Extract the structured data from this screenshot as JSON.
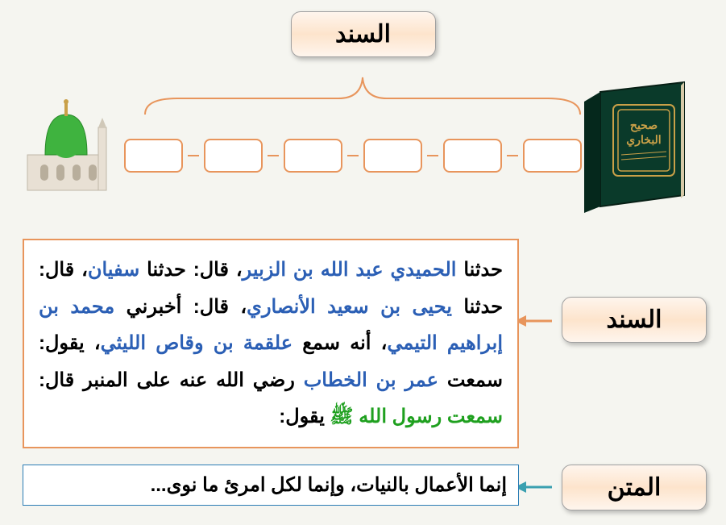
{
  "labels": {
    "sanad_title": "السند",
    "sanad_side": "السند",
    "matn_side": "المتن"
  },
  "colors": {
    "orange_border": "#e8955c",
    "blue_border": "#2b7db5",
    "box_bg_grad_top": "#fef5ed",
    "box_bg_grad_mid": "#fde4cc",
    "narrator_color": "#2b5fb5",
    "prophet_color": "#1fa01f",
    "text_black": "#000000",
    "bg": "#f5f5f0",
    "arrow_orange": "#e8955c",
    "arrow_teal": "#3aa0b0",
    "brace_color": "#e8955c",
    "book_cover": "#0a3a2a",
    "book_gold": "#c9a048",
    "dome_green": "#3fb33f",
    "building_color": "#e8e0d4"
  },
  "chain": {
    "box_count": 6
  },
  "sanad_text": {
    "segments": [
      {
        "t": "حدثنا ",
        "c": "black"
      },
      {
        "t": "الحميدي عبد الله بن الزبير",
        "c": "narrator"
      },
      {
        "t": "، قال: حدثنا ",
        "c": "black"
      },
      {
        "t": "سفيان",
        "c": "narrator"
      },
      {
        "t": "، قال: حدثنا ",
        "c": "black"
      },
      {
        "t": "يحيى بن سعيد الأنصاري",
        "c": "narrator"
      },
      {
        "t": "، قال: أخبرني ",
        "c": "black"
      },
      {
        "t": "محمد بن إبراهيم التيمي",
        "c": "narrator"
      },
      {
        "t": "، أنه سمع ",
        "c": "black"
      },
      {
        "t": "علقمة بن وقاص الليثي",
        "c": "narrator"
      },
      {
        "t": "، يقول: سمعت ",
        "c": "black"
      },
      {
        "t": "عمر بن الخطاب",
        "c": "narrator"
      },
      {
        "t": " رضي الله عنه على المنبر قال: ",
        "c": "black"
      },
      {
        "t": "سمعت رسول الله ﷺ",
        "c": "prophet"
      },
      {
        "t": " يقول:",
        "c": "black"
      }
    ]
  },
  "matn_text": "إنما الأعمال بالنيات، وإنما لكل امرئ ما نوى..."
}
